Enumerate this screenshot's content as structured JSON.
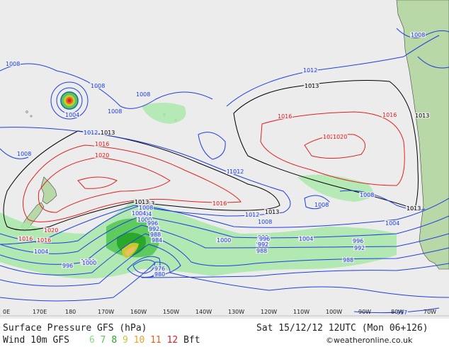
{
  "footer": {
    "title_left": "Surface Pressure GFS (hPa)",
    "title_right": "Sat 15/12/12 12UTC (Mon 06+126)",
    "wind_label": "Wind 10m GFS",
    "bft_unit": "Bft",
    "bft_scale": [
      {
        "value": "6",
        "color": "#7fe07f"
      },
      {
        "value": "7",
        "color": "#55c855"
      },
      {
        "value": "8",
        "color": "#2aa82a"
      },
      {
        "value": "9",
        "color": "#c8c832"
      },
      {
        "value": "10",
        "color": "#e8a030"
      },
      {
        "value": "11",
        "color": "#e86020"
      },
      {
        "value": "12",
        "color": "#e02020"
      }
    ],
    "credit": "©weatheronline.co.uk"
  },
  "longitudes": [
    "0E",
    "170E",
    "180",
    "170W",
    "160W",
    "150W",
    "140W",
    "130W",
    "120W",
    "110W",
    "100W",
    "90W",
    "80W",
    "70W"
  ],
  "isobar_labels": [
    {
      "text": "1008",
      "color": "blue"
    },
    {
      "text": "1008",
      "color": "blue"
    },
    {
      "text": "1008",
      "color": "blue"
    },
    {
      "text": "1004",
      "color": "blue"
    },
    {
      "text": "1008",
      "color": "blue"
    },
    {
      "text": "1012",
      "color": "blue"
    },
    {
      "text": "1013",
      "color": "black"
    },
    {
      "text": "1016",
      "color": "red"
    },
    {
      "text": "1020",
      "color": "red"
    },
    {
      "text": "1008",
      "color": "blue"
    },
    {
      "text": "1012",
      "color": "blue"
    },
    {
      "text": "1013",
      "color": "black"
    },
    {
      "text": "1016",
      "color": "red"
    },
    {
      "text": "1020",
      "color": "red"
    },
    {
      "text": "1016",
      "color": "red"
    },
    {
      "text": "1013",
      "color": "black"
    },
    {
      "text": "1012",
      "color": "blue"
    },
    {
      "text": "1013",
      "color": "black"
    },
    {
      "text": "1016",
      "color": "red"
    },
    {
      "text": "1020",
      "color": "red"
    },
    {
      "text": "1016",
      "color": "red"
    },
    {
      "text": "1012",
      "color": "blue"
    },
    {
      "text": "1013",
      "color": "black"
    },
    {
      "text": "1013",
      "color": "black"
    },
    {
      "text": "1008",
      "color": "blue"
    },
    {
      "text": "1008",
      "color": "blue"
    },
    {
      "text": "1008",
      "color": "blue"
    },
    {
      "text": "1004",
      "color": "blue"
    },
    {
      "text": "1000",
      "color": "blue"
    },
    {
      "text": "996",
      "color": "blue"
    },
    {
      "text": "992",
      "color": "blue"
    },
    {
      "text": "988",
      "color": "blue"
    },
    {
      "text": "984",
      "color": "blue"
    },
    {
      "text": "980",
      "color": "blue"
    },
    {
      "text": "976",
      "color": "blue"
    },
    {
      "text": "1004",
      "color": "blue"
    },
    {
      "text": "1000",
      "color": "blue"
    },
    {
      "text": "996",
      "color": "blue"
    },
    {
      "text": "992",
      "color": "blue"
    },
    {
      "text": "988",
      "color": "blue"
    },
    {
      "text": "1004",
      "color": "blue"
    },
    {
      "text": "1000",
      "color": "blue"
    },
    {
      "text": "996",
      "color": "blue"
    },
    {
      "text": "992",
      "color": "blue"
    },
    {
      "text": "988",
      "color": "blue"
    },
    {
      "text": "997",
      "color": "blue"
    },
    {
      "text": "1004",
      "color": "blue"
    },
    {
      "text": "1008",
      "color": "blue"
    },
    {
      "text": "1012",
      "color": "blue"
    },
    {
      "text": "1016",
      "color": "red"
    },
    {
      "text": "1020",
      "color": "red"
    },
    {
      "text": "1004",
      "color": "blue"
    },
    {
      "text": "1000",
      "color": "blue"
    },
    {
      "text": "996",
      "color": "blue"
    },
    {
      "text": "992",
      "color": "blue"
    },
    {
      "text": "988",
      "color": "blue"
    },
    {
      "text": "1008",
      "color": "blue"
    },
    {
      "text": "1013",
      "color": "black"
    }
  ]
}
